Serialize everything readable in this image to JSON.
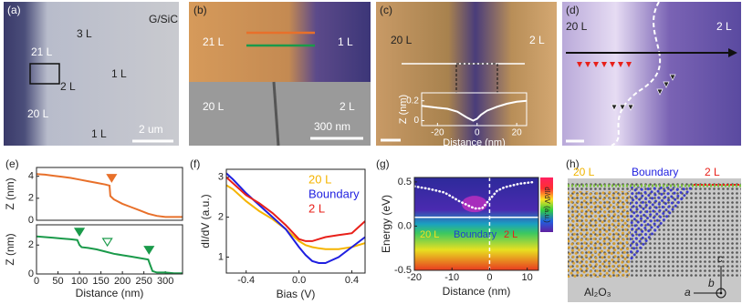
{
  "figure": {
    "panels": [
      {
        "label": "(a)",
        "texts": [
          "G/SiC",
          "3 L",
          "21 L",
          "2 L",
          "1 L",
          "20 L",
          "1 L",
          "2 um"
        ]
      },
      {
        "label": "(b)",
        "texts": [
          "21 L",
          "1 L",
          "20 L",
          "2 L",
          "300 nm"
        ]
      },
      {
        "label": "(c)",
        "texts": [
          "20 L",
          "2 L"
        ]
      },
      {
        "label": "(d)",
        "texts": [
          "20 L",
          "2 L"
        ]
      },
      {
        "label": "(e)"
      },
      {
        "label": "(f)"
      },
      {
        "label": "(g)",
        "texts": [
          "20 L",
          "Boundary",
          "2 L",
          "dI/dV (a.u.)"
        ]
      },
      {
        "label": "(h)",
        "texts": [
          "20 L",
          "Boundary",
          "2 L",
          "Al₂O₃",
          "c",
          "b",
          "a"
        ]
      }
    ]
  },
  "chart_data": [
    {
      "type": "line",
      "ylabel": "Z (nm)",
      "xlim": [
        0,
        340
      ],
      "ylim": [
        0,
        4.8
      ],
      "yticks": [
        0,
        2,
        4
      ],
      "series": [
        {
          "color": "#e8702a",
          "x": [
            0,
            20,
            40,
            60,
            80,
            100,
            120,
            140,
            160,
            170,
            172,
            180,
            200,
            220,
            240,
            260,
            280,
            300,
            320,
            340
          ],
          "values": [
            4.2,
            4.15,
            4.05,
            3.95,
            3.85,
            3.7,
            3.55,
            3.4,
            3.25,
            3.15,
            2.2,
            1.9,
            1.5,
            1.2,
            0.9,
            0.6,
            0.4,
            0.3,
            0.3,
            0.3
          ]
        }
      ],
      "markers": [
        {
          "x": 175,
          "y": 3.5,
          "filled": true,
          "color": "#e8702a"
        }
      ]
    },
    {
      "type": "line",
      "ylabel": "Z (nm)",
      "xlabel": "Distance (nm)",
      "xlim": [
        0,
        340
      ],
      "ylim": [
        0,
        3.4
      ],
      "yticks": [
        0,
        2
      ],
      "xticks": [
        0,
        50,
        100,
        150,
        200,
        250,
        300
      ],
      "series": [
        {
          "color": "#1a9a4a",
          "x": [
            0,
            20,
            40,
            60,
            80,
            95,
            100,
            105,
            120,
            140,
            160,
            180,
            200,
            220,
            240,
            260,
            265,
            270,
            280,
            300,
            320,
            340
          ],
          "values": [
            2.6,
            2.55,
            2.5,
            2.45,
            2.4,
            2.35,
            2.0,
            1.85,
            1.8,
            1.7,
            1.55,
            1.4,
            1.3,
            1.2,
            1.1,
            1.0,
            0.6,
            0.2,
            0.1,
            0.1,
            0.05,
            0.05
          ]
        }
      ],
      "markers": [
        {
          "x": 100,
          "y": 2.65,
          "filled": true,
          "color": "#1a9a4a"
        },
        {
          "x": 165,
          "y": 1.95,
          "filled": false,
          "color": "#1a9a4a"
        },
        {
          "x": 262,
          "y": 1.4,
          "filled": true,
          "color": "#1a9a4a"
        }
      ]
    },
    {
      "type": "line",
      "xlabel": "Bias (V)",
      "ylabel": "dI/dV (a.u.)",
      "xlim": [
        -0.55,
        0.5
      ],
      "ylim": [
        0.6,
        3.2
      ],
      "xticks": [
        -0.4,
        {
          "value": 0,
          "label": "0.0"
        },
        0.4
      ],
      "yticks": [
        1,
        2,
        3
      ],
      "x": [
        -0.55,
        -0.5,
        -0.4,
        -0.3,
        -0.2,
        -0.1,
        0,
        0.05,
        0.1,
        0.15,
        0.2,
        0.3,
        0.4,
        0.5
      ],
      "series": [
        {
          "name": "20 L",
          "color": "#f5b400",
          "values": [
            2.8,
            2.7,
            2.4,
            2.15,
            1.95,
            1.7,
            1.4,
            1.3,
            1.25,
            1.22,
            1.2,
            1.2,
            1.25,
            1.35
          ]
        },
        {
          "name": "Boundary",
          "color": "#1f1fe0",
          "values": [
            3.1,
            2.95,
            2.6,
            2.3,
            2.0,
            1.7,
            1.25,
            1.05,
            0.9,
            0.85,
            0.85,
            1.0,
            1.25,
            1.5
          ]
        },
        {
          "name": "2 L",
          "color": "#e8201a",
          "values": [
            3.0,
            2.85,
            2.55,
            2.35,
            2.1,
            1.8,
            1.45,
            1.4,
            1.4,
            1.45,
            1.5,
            1.55,
            1.6,
            1.9
          ]
        }
      ]
    },
    {
      "type": "heatmap",
      "xlabel": "Distance (nm)",
      "ylabel": "Energy (eV)",
      "xlim": [
        -20,
        13
      ],
      "ylim": [
        -0.5,
        0.55
      ],
      "xticks": [
        -20,
        -10,
        0,
        10
      ],
      "yticks": [
        -0.5,
        {
          "value": 0,
          "label": "0.0"
        },
        0.5
      ],
      "series": [
        {
          "color": "#ffffff",
          "x": [
            -20,
            -16,
            -12,
            -8,
            -4,
            -2,
            0,
            2,
            4,
            8,
            12
          ],
          "values": [
            0.45,
            0.42,
            0.38,
            0.28,
            0.2,
            0.2,
            0.3,
            0.4,
            0.44,
            0.48,
            0.5
          ]
        }
      ]
    },
    {
      "type": "line",
      "xlabel": "Distance (nm)",
      "ylabel": "Z (nm)",
      "xlim": [
        -28,
        25
      ],
      "ylim": [
        -0.05,
        0.28
      ],
      "xticks": [
        -20,
        0,
        20
      ],
      "yticks": [
        0.2,
        0
      ],
      "series": [
        {
          "color": "#ffffff",
          "x": [
            -28,
            -20,
            -15,
            -10,
            -5,
            -2,
            0,
            2,
            5,
            10,
            15,
            20,
            25
          ],
          "values": [
            0.15,
            0.13,
            0.12,
            0.09,
            0.03,
            0.0,
            0.02,
            0.06,
            0.1,
            0.14,
            0.17,
            0.19,
            0.2
          ]
        }
      ]
    }
  ]
}
